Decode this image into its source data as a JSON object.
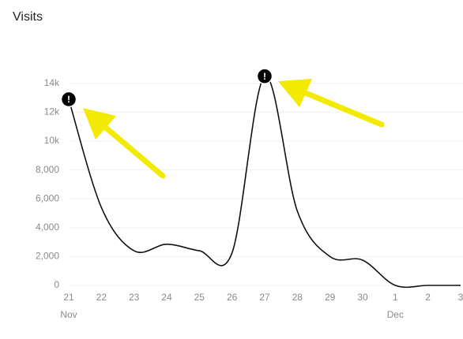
{
  "chart_data": {
    "type": "line",
    "title": "Visits",
    "categories": [
      "21",
      "22",
      "23",
      "24",
      "25",
      "26",
      "27",
      "28",
      "29",
      "30",
      "1",
      "2",
      "3"
    ],
    "month_labels": [
      "Nov",
      null,
      null,
      null,
      null,
      null,
      null,
      null,
      null,
      null,
      "Dec",
      null,
      null
    ],
    "series": [
      {
        "name": "Visits",
        "color": "#111111",
        "values": [
          12900,
          5400,
          2400,
          2850,
          2400,
          2250,
          14500,
          5150,
          2000,
          1750,
          0,
          0,
          0
        ]
      }
    ],
    "ylim": [
      0,
      15000
    ],
    "yticks": [
      0,
      {
        "value": 2000,
        "label": "2,000"
      },
      {
        "value": 4000,
        "label": "4,000"
      },
      {
        "value": 6000,
        "label": "6,000"
      },
      {
        "value": 8000,
        "label": "8,000"
      },
      {
        "value": 10000,
        "label": "10k"
      },
      {
        "value": 12000,
        "label": "12k"
      },
      {
        "value": 14000,
        "label": "14k"
      }
    ],
    "grid": true,
    "annotations": [
      {
        "x": "21",
        "label": "!"
      },
      {
        "x": "27",
        "label": "!"
      }
    ]
  }
}
